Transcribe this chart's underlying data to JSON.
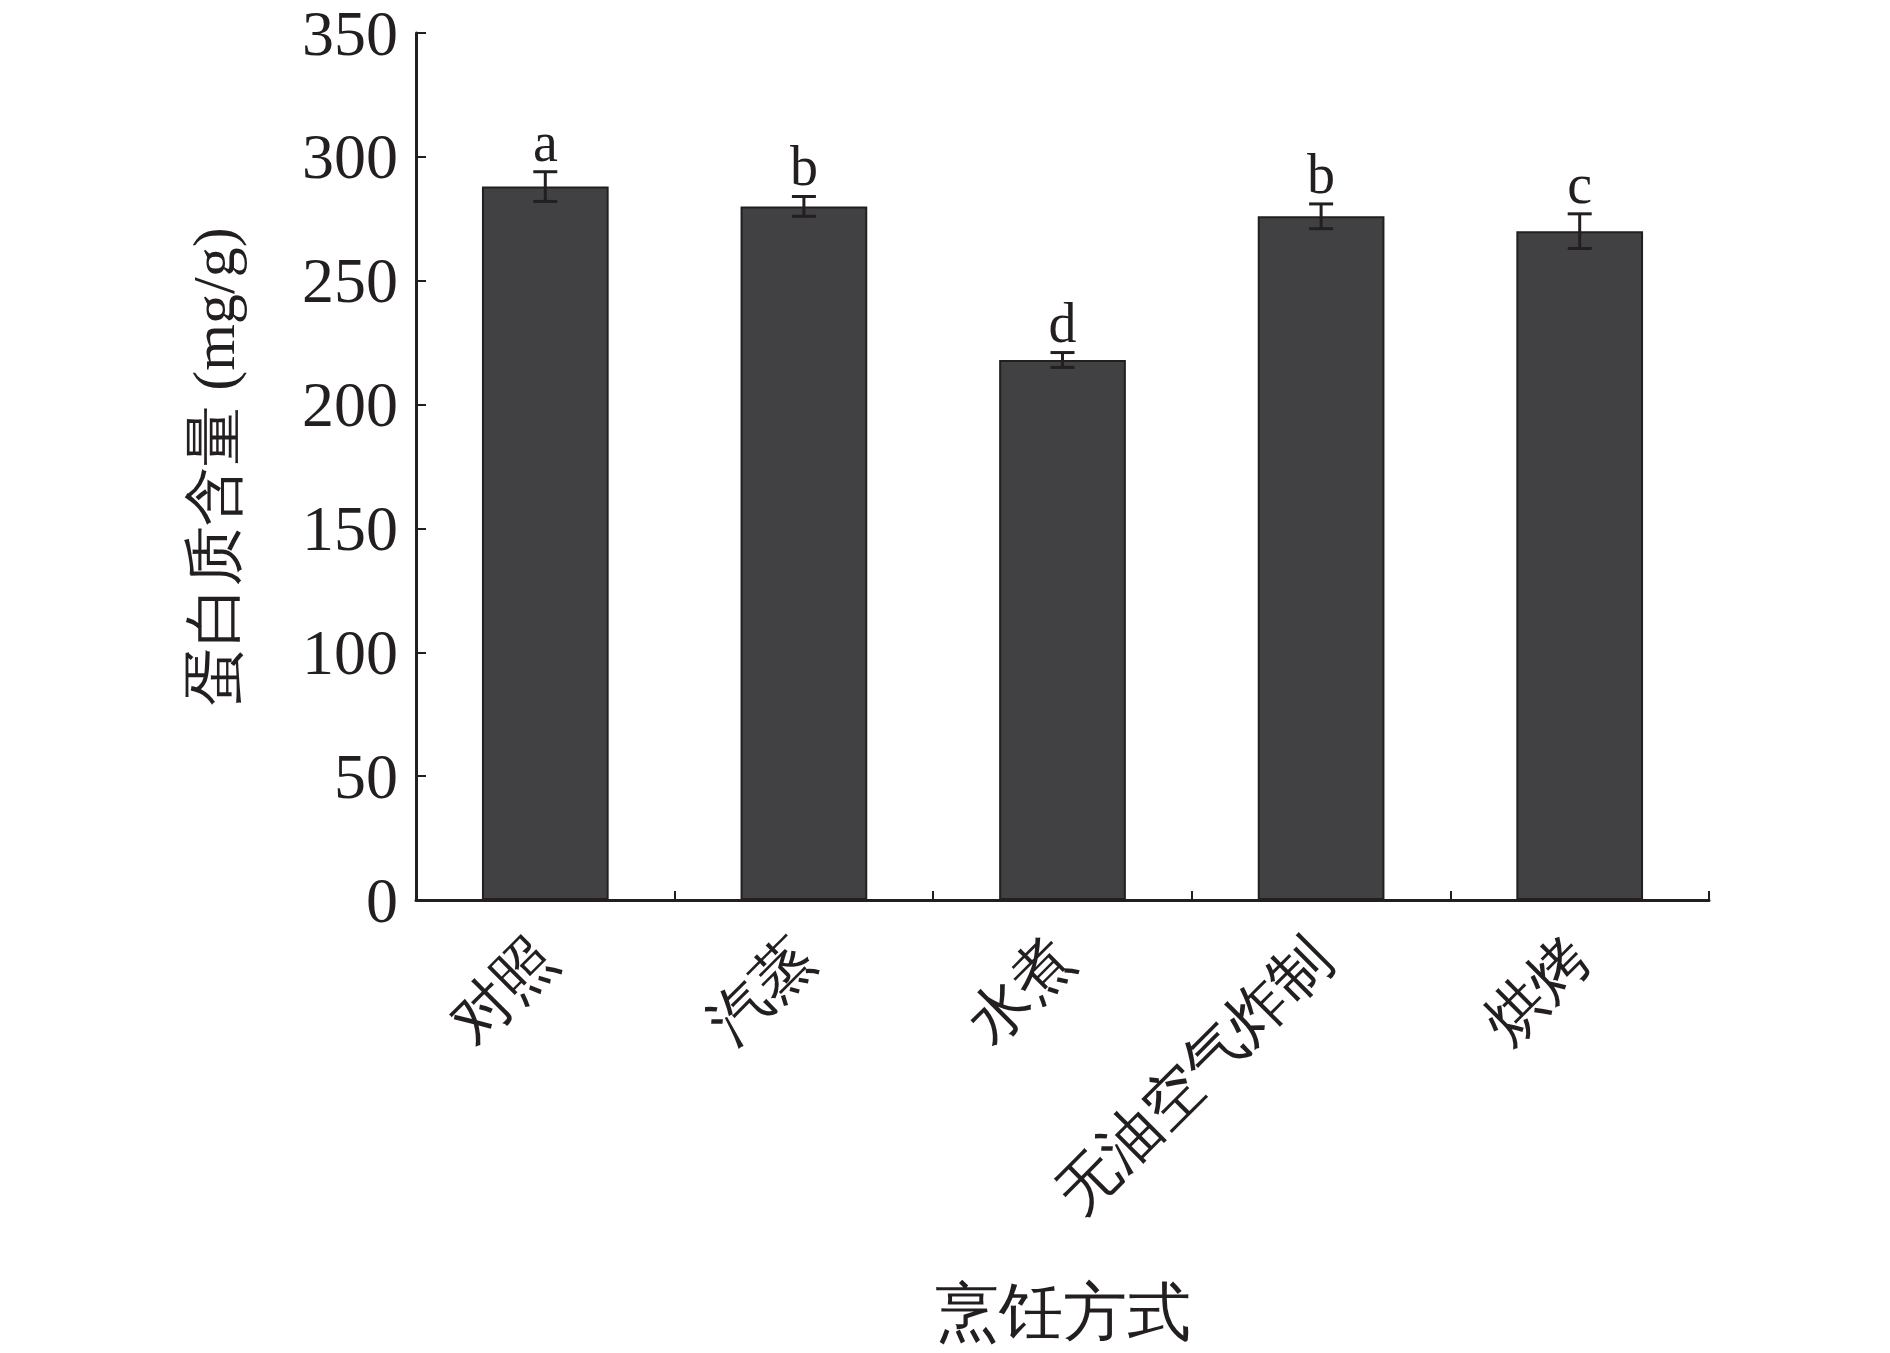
{
  "chart_data": {
    "type": "bar",
    "xlabel": "烹饪方式",
    "ylabel": "蛋白质含量 (mg/g)",
    "categories": [
      "对照",
      "汽蒸",
      "水煮",
      "无油空气炸制",
      "烘烤"
    ],
    "values": [
      288,
      280,
      218,
      276,
      270
    ],
    "errors": [
      6,
      4,
      3,
      5,
      7
    ],
    "color": "#414042",
    "ylim": [
      0,
      350
    ],
    "yticks": [
      0,
      50,
      100,
      150,
      200,
      250,
      300,
      350
    ],
    "annotations": [
      {
        "text": "a",
        "x": "对照",
        "y": 294
      },
      {
        "text": "b",
        "x": "汽蒸",
        "y": 284
      },
      {
        "text": "d",
        "x": "水煮",
        "y": 221
      },
      {
        "text": "b",
        "x": "无油空气炸制",
        "y": 281
      },
      {
        "text": "c",
        "x": "烘烤",
        "y": 277
      }
    ]
  }
}
